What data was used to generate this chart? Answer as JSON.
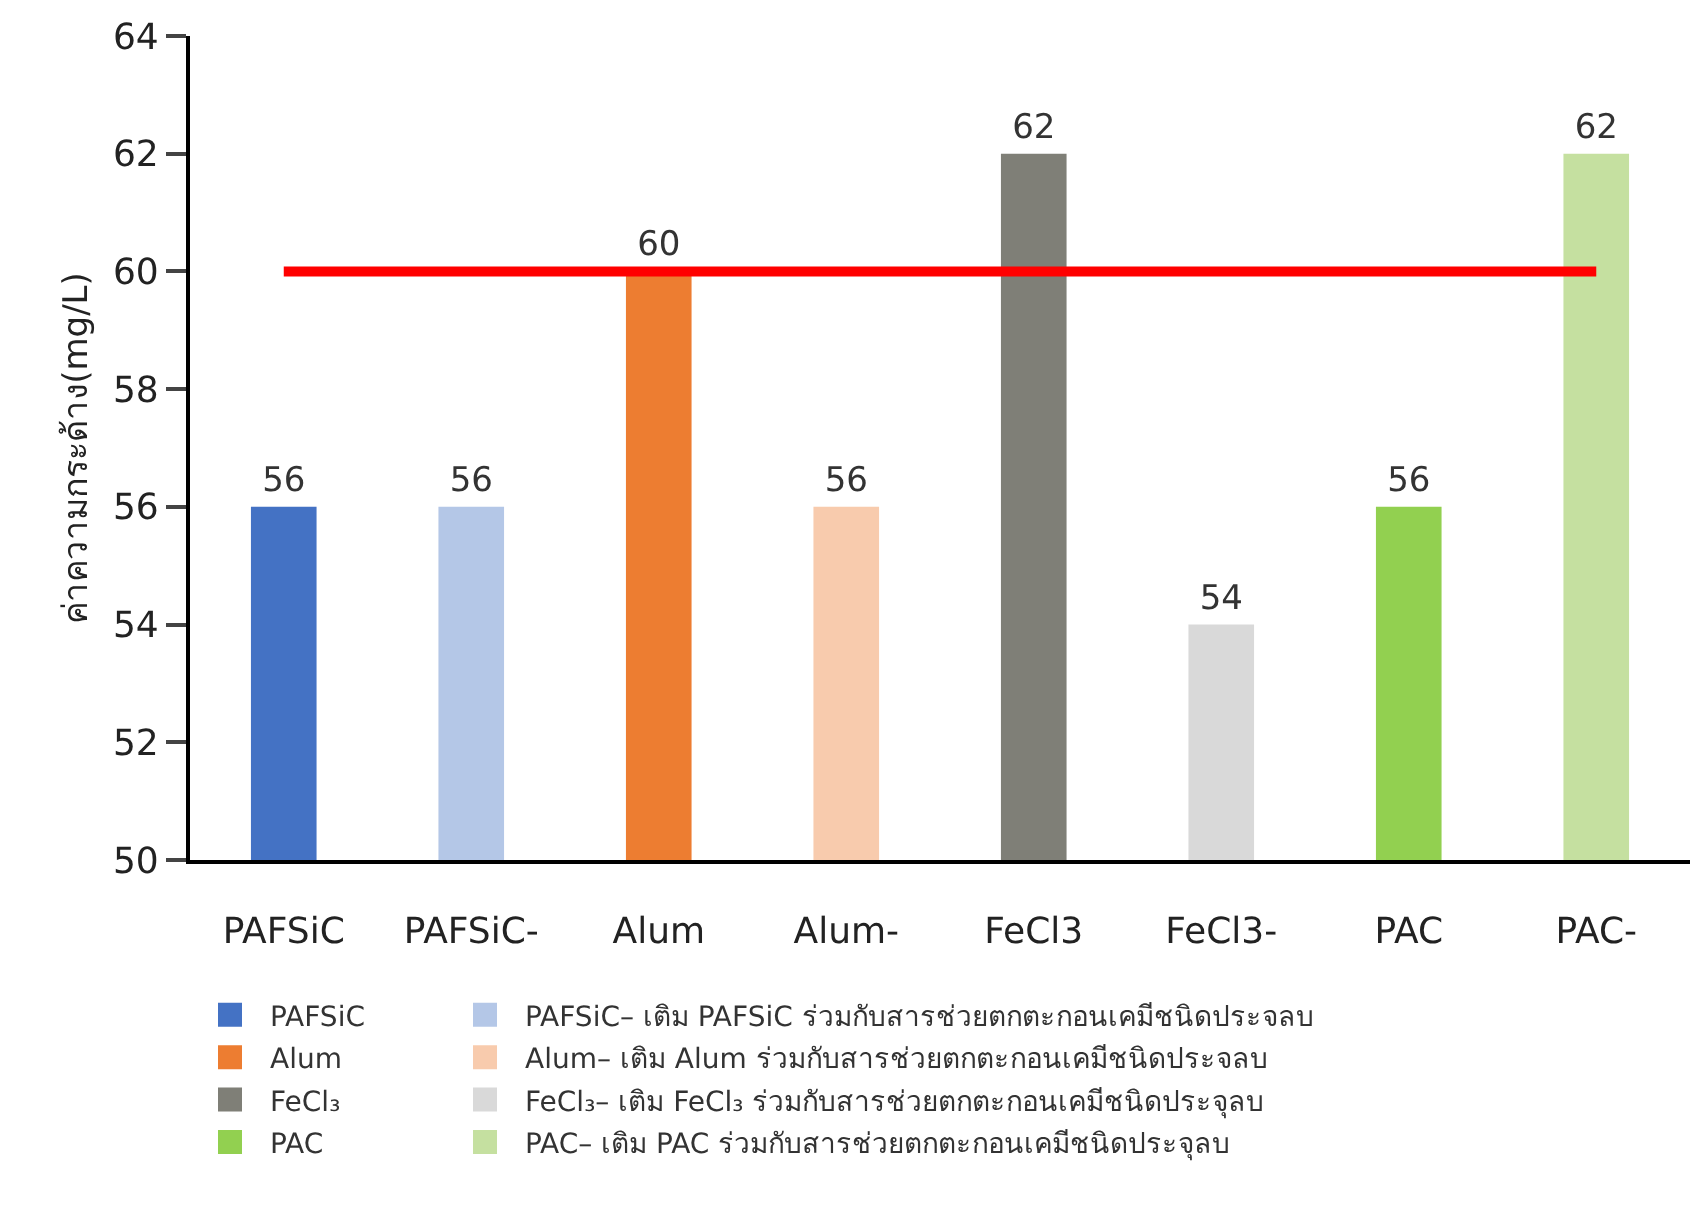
{
  "chart_data": {
    "type": "bar",
    "ylabel": "ค่าความกระด้าง(mg/L)",
    "categories": [
      "PAFSiC",
      "PAFSiC-",
      "Alum",
      "Alum-",
      "FeCl3",
      "FeCl3-",
      "PAC",
      "PAC-"
    ],
    "series": [
      {
        "name": "PAFSiC",
        "color": "#4472c4",
        "values": [
          56,
          null,
          null,
          null,
          null,
          null,
          null,
          null
        ]
      },
      {
        "name": "PAFSiC– เติม PAFSiC ร่วมกับสารช่วยตกตะกอนเคมีชนิดประจลบ",
        "color": "#b4c7e7",
        "values": [
          null,
          56,
          null,
          null,
          null,
          null,
          null,
          null
        ]
      },
      {
        "name": "Alum",
        "color": "#ed7d31",
        "values": [
          null,
          null,
          60,
          null,
          null,
          null,
          null,
          null
        ]
      },
      {
        "name": "Alum– เติม Alum ร่วมกับสารช่วยตกตะกอนเคมีชนิดประจลบ",
        "color": "#f8cbad",
        "values": [
          null,
          null,
          null,
          56,
          null,
          null,
          null,
          null
        ]
      },
      {
        "name": "FeCl₃",
        "color": "#7f7f77",
        "values": [
          null,
          null,
          null,
          null,
          62,
          null,
          null,
          null
        ]
      },
      {
        "name": "FeCl₃– เติม FeCl₃ ร่วมกับสารช่วยตกตะกอนเคมีชนิดประจุลบ",
        "color": "#d9d9d9",
        "values": [
          null,
          null,
          null,
          null,
          null,
          54,
          null,
          null
        ]
      },
      {
        "name": "PAC",
        "color": "#92d050",
        "values": [
          null,
          null,
          null,
          null,
          null,
          null,
          56,
          null
        ]
      },
      {
        "name": "PAC– เติม PAC ร่วมกับสารช่วยตกตะกอนเคมีชนิดประจุลบ",
        "color": "#c5e0a0",
        "values": [
          null,
          null,
          null,
          null,
          null,
          null,
          null,
          62
        ]
      }
    ],
    "ylim": [
      50,
      64
    ],
    "yticks": [
      50,
      52,
      54,
      56,
      58,
      60,
      62,
      64
    ],
    "ref_lines": [
      {
        "axis": "y",
        "value": 60,
        "color": "#ff0000"
      }
    ],
    "data_labels": true,
    "legend": "bottom"
  }
}
